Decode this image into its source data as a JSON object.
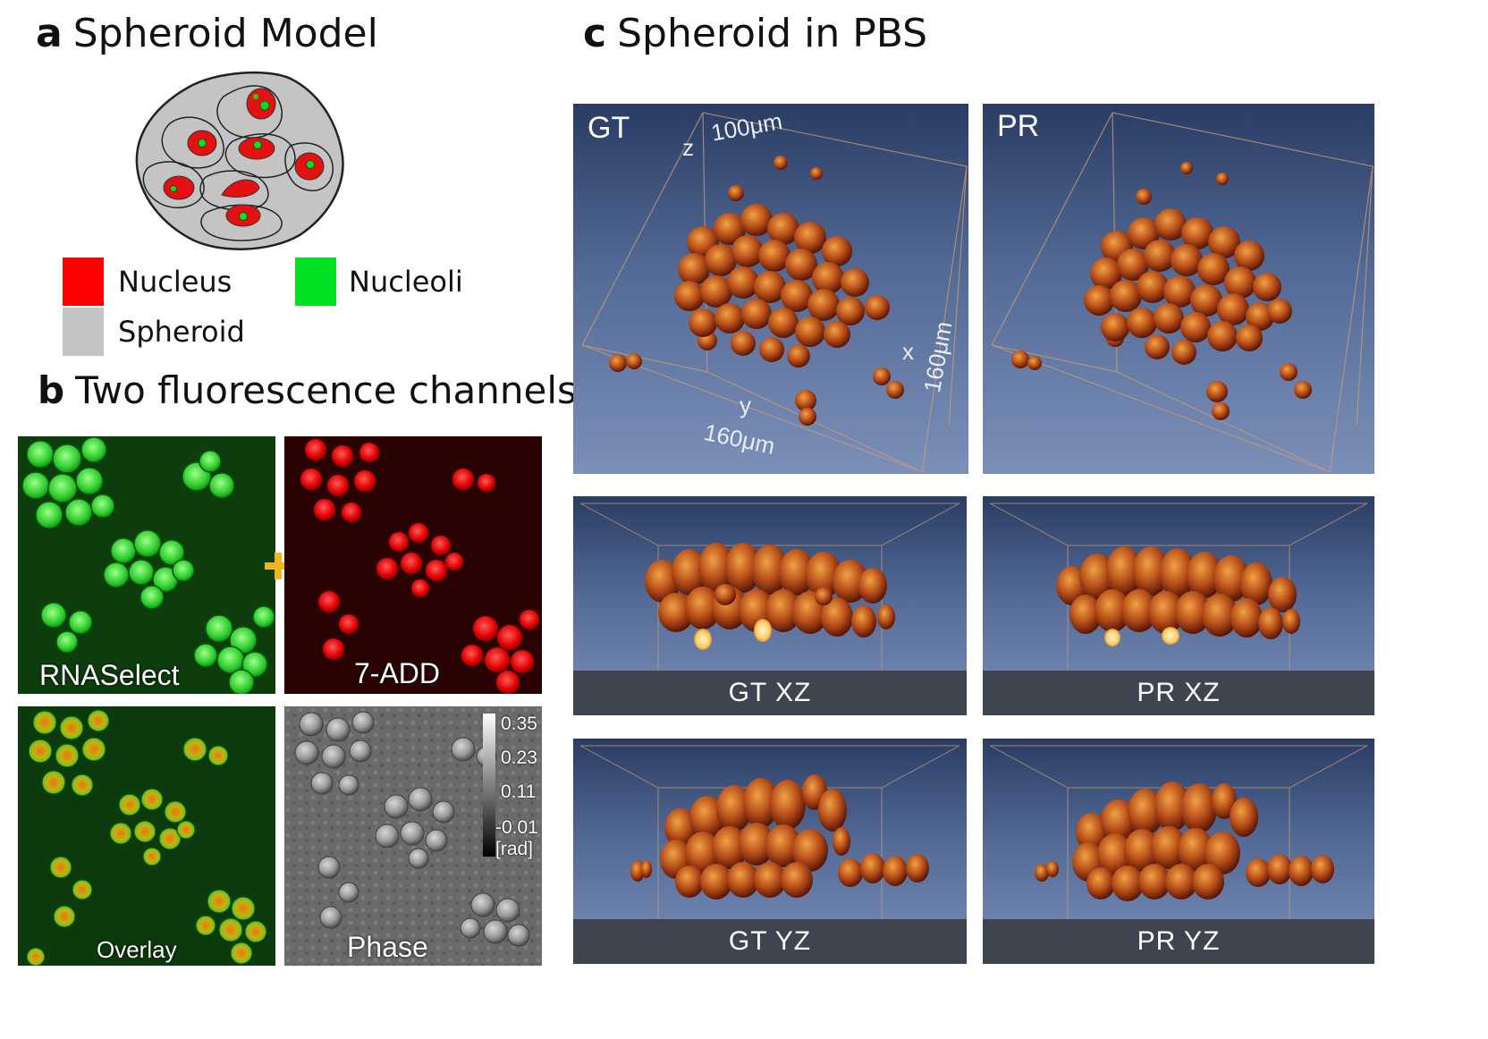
{
  "panel_a": {
    "letter": "a",
    "title": "Spheroid Model",
    "legend": [
      {
        "label": "Nucleus",
        "color": "#ff0000"
      },
      {
        "label": "Nucleoli",
        "color": "#00e020"
      },
      {
        "label": "Spheroid",
        "color": "#c4c4c4"
      }
    ]
  },
  "panel_b": {
    "letter": "b",
    "title": "Two fluorescence channels",
    "tiles": {
      "rnaselect": "RNASelect",
      "add7": "7-ADD",
      "overlay": "Overlay",
      "phase": "Phase"
    },
    "colorbar": {
      "ticks": [
        "0.35",
        "0.23",
        "0.11",
        "-0.01"
      ],
      "unit": "[rad]"
    }
  },
  "panel_c": {
    "letter": "c",
    "title": "Spheroid in PBS",
    "gt": "GT",
    "pr": "PR",
    "axes": {
      "z": "z",
      "z_len": "100μm",
      "x": "x",
      "x_len": "160μm",
      "y": "y",
      "y_len": "160μm"
    },
    "captions": {
      "gt_xz": "GT XZ",
      "pr_xz": "PR XZ",
      "gt_yz": "GT YZ",
      "pr_yz": "PR YZ"
    }
  },
  "colors": {
    "render_top": "#2a3c63",
    "render_bottom": "#7b8fb8",
    "caption_bar": "#3f4550"
  }
}
